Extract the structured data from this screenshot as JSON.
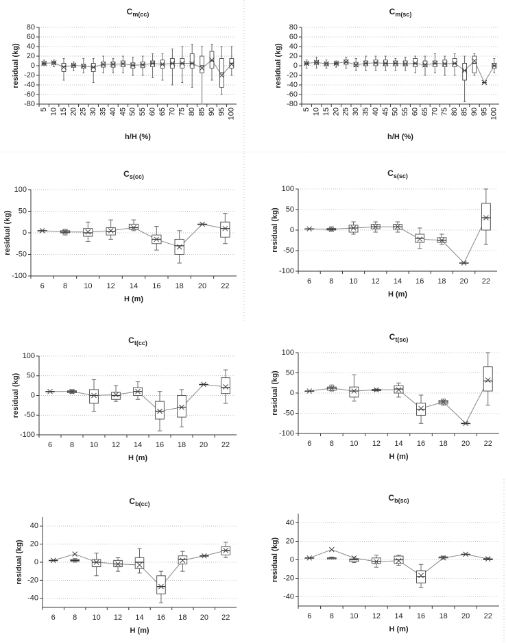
{
  "chart_data": [
    {
      "type": "box",
      "title_main": "C",
      "title_sub": "m(cc)",
      "xlabel": "h/H (%)",
      "ylabel": "residual (kg)",
      "categories": [
        "5",
        "10",
        "15",
        "20",
        "25",
        "30",
        "35",
        "40",
        "45",
        "50",
        "55",
        "60",
        "65",
        "70",
        "75",
        "80",
        "85",
        "90",
        "95",
        "100"
      ],
      "min": [
        0,
        -2,
        -30,
        -10,
        -15,
        -35,
        -15,
        -15,
        -15,
        -20,
        -20,
        -25,
        -30,
        -40,
        -35,
        -45,
        -80,
        -30,
        -60,
        -20
      ],
      "q1": [
        2,
        3,
        -12,
        -3,
        -5,
        -12,
        -3,
        -3,
        -2,
        -5,
        -4,
        -2,
        -5,
        -5,
        -5,
        -5,
        -15,
        -5,
        -45,
        -5
      ],
      "median": [
        5,
        6,
        -2,
        1,
        -1,
        -3,
        2,
        3,
        4,
        1,
        2,
        5,
        3,
        5,
        5,
        5,
        0,
        10,
        -15,
        5
      ],
      "q3": [
        8,
        9,
        5,
        4,
        3,
        5,
        8,
        8,
        10,
        6,
        8,
        10,
        12,
        15,
        15,
        25,
        20,
        30,
        15,
        15
      ],
      "max": [
        12,
        12,
        15,
        8,
        15,
        15,
        20,
        15,
        20,
        18,
        20,
        25,
        25,
        35,
        40,
        45,
        40,
        45,
        40,
        40
      ],
      "mean": [
        5,
        6,
        -3,
        1,
        -1,
        -3,
        3,
        3,
        4,
        1,
        2,
        5,
        3,
        5,
        5,
        5,
        -5,
        12,
        -20,
        3
      ],
      "ylim": [
        -80,
        80
      ],
      "yticks": [
        -80,
        -60,
        -40,
        -20,
        0,
        20,
        40,
        60,
        80
      ],
      "grid": true
    },
    {
      "type": "box",
      "title_main": "C",
      "title_sub": "m(sc)",
      "xlabel": "h/H (%)",
      "ylabel": "residual (kg)",
      "categories": [
        "5",
        "10",
        "15",
        "20",
        "25",
        "30",
        "35",
        "40",
        "45",
        "50",
        "55",
        "60",
        "65",
        "70",
        "75",
        "80",
        "85",
        "90",
        "95",
        "100"
      ],
      "min": [
        -5,
        -5,
        -5,
        -3,
        -5,
        -10,
        -10,
        -10,
        -10,
        -10,
        -10,
        -15,
        -20,
        -15,
        -20,
        -20,
        -75,
        -20,
        -35,
        -15
      ],
      "q1": [
        2,
        3,
        0,
        2,
        3,
        -2,
        0,
        0,
        0,
        0,
        0,
        -2,
        -2,
        -2,
        -2,
        -2,
        -30,
        -15,
        -35,
        -5
      ],
      "median": [
        5,
        6,
        4,
        5,
        7,
        3,
        5,
        6,
        5,
        5,
        4,
        5,
        3,
        5,
        4,
        5,
        -10,
        5,
        -35,
        0
      ],
      "q3": [
        8,
        10,
        7,
        7,
        12,
        7,
        10,
        12,
        12,
        10,
        10,
        15,
        10,
        10,
        12,
        15,
        5,
        20,
        -35,
        5
      ],
      "max": [
        12,
        18,
        12,
        10,
        18,
        15,
        20,
        20,
        20,
        15,
        18,
        20,
        20,
        25,
        20,
        25,
        20,
        25,
        -35,
        15
      ],
      "mean": [
        5,
        7,
        4,
        5,
        8,
        2,
        5,
        6,
        5,
        5,
        4,
        5,
        2,
        5,
        4,
        5,
        -10,
        10,
        -35,
        0
      ],
      "ylim": [
        -80,
        80
      ],
      "yticks": [
        -80,
        -60,
        -40,
        -20,
        0,
        20,
        40,
        60,
        80
      ],
      "grid": true
    },
    {
      "type": "box",
      "title_main": "C",
      "title_sub": "s(cc)",
      "xlabel": "H (m)",
      "ylabel": "residual (kg)",
      "categories": [
        "6",
        "8",
        "10",
        "12",
        "14",
        "16",
        "18",
        "20",
        "22"
      ],
      "min": [
        5,
        -5,
        -20,
        -15,
        5,
        -40,
        -70,
        20,
        -25
      ],
      "q1": [
        5,
        0,
        -8,
        -5,
        8,
        -25,
        -50,
        20,
        -10
      ],
      "median": [
        5,
        2,
        0,
        3,
        12,
        -15,
        -30,
        20,
        10
      ],
      "q3": [
        5,
        5,
        10,
        12,
        20,
        -5,
        -15,
        20,
        25
      ],
      "max": [
        5,
        8,
        25,
        30,
        30,
        15,
        5,
        20,
        45
      ],
      "mean": [
        5,
        2,
        2,
        5,
        12,
        -15,
        -33,
        20,
        10
      ],
      "ylim": [
        -100,
        100
      ],
      "yticks": [
        -100,
        -50,
        0,
        50,
        100
      ],
      "grid": true
    },
    {
      "type": "box",
      "title_main": "C",
      "title_sub": "s(sc)",
      "xlabel": "H (m)",
      "ylabel": "residual (kg)",
      "categories": [
        "6",
        "8",
        "10",
        "12",
        "14",
        "16",
        "18",
        "20",
        "22"
      ],
      "min": [
        3,
        -3,
        -10,
        -5,
        -5,
        -45,
        -35,
        -80,
        -35
      ],
      "q1": [
        3,
        0,
        -5,
        3,
        2,
        -30,
        -30,
        -80,
        0
      ],
      "median": [
        3,
        2,
        5,
        8,
        8,
        -20,
        -25,
        -80,
        30
      ],
      "q3": [
        3,
        4,
        12,
        14,
        14,
        -10,
        -18,
        -80,
        65
      ],
      "max": [
        3,
        8,
        20,
        20,
        20,
        5,
        -10,
        -80,
        100
      ],
      "mean": [
        3,
        2,
        5,
        8,
        8,
        -22,
        -25,
        -80,
        30
      ],
      "ylim": [
        -100,
        100
      ],
      "yticks": [
        -100,
        -50,
        0,
        50,
        100
      ],
      "grid": true
    },
    {
      "type": "box",
      "title_main": "C",
      "title_sub": "t(cc)",
      "xlabel": "H (m)",
      "ylabel": "residual (kg)",
      "categories": [
        "6",
        "8",
        "10",
        "12",
        "14",
        "16",
        "18",
        "20",
        "22"
      ],
      "min": [
        10,
        5,
        -40,
        -15,
        -10,
        -90,
        -80,
        28,
        -20
      ],
      "q1": [
        10,
        7,
        -20,
        -10,
        0,
        -60,
        -55,
        28,
        5
      ],
      "median": [
        10,
        10,
        0,
        0,
        10,
        -40,
        -30,
        28,
        20
      ],
      "q3": [
        10,
        12,
        15,
        8,
        20,
        -15,
        0,
        28,
        45
      ],
      "max": [
        10,
        15,
        40,
        25,
        35,
        10,
        15,
        28,
        65
      ],
      "mean": [
        10,
        10,
        0,
        2,
        10,
        -40,
        -30,
        28,
        22
      ],
      "ylim": [
        -100,
        100
      ],
      "yticks": [
        -100,
        -50,
        0,
        50,
        100
      ],
      "grid": true
    },
    {
      "type": "box",
      "title_main": "C",
      "title_sub": "t(sc)",
      "xlabel": "H (m)",
      "ylabel": "residual (kg)",
      "categories": [
        "6",
        "8",
        "10",
        "12",
        "14",
        "16",
        "18",
        "20",
        "22"
      ],
      "min": [
        5,
        5,
        -20,
        5,
        -10,
        -75,
        -30,
        -75,
        -30
      ],
      "q1": [
        5,
        7,
        -10,
        6,
        0,
        -55,
        -27,
        -75,
        5
      ],
      "median": [
        5,
        12,
        5,
        8,
        10,
        -40,
        -22,
        -75,
        30
      ],
      "q3": [
        5,
        15,
        15,
        9,
        18,
        -25,
        -18,
        -75,
        65
      ],
      "max": [
        5,
        20,
        45,
        10,
        25,
        -5,
        -15,
        -75,
        100
      ],
      "mean": [
        5,
        12,
        5,
        8,
        8,
        -38,
        -22,
        -75,
        32
      ],
      "ylim": [
        -100,
        100
      ],
      "yticks": [
        -100,
        -50,
        0,
        50,
        100
      ],
      "grid": true
    },
    {
      "type": "box",
      "title_main": "C",
      "title_sub": "b(cc)",
      "xlabel": "H (m)",
      "ylabel": "residual (kg)",
      "categories": [
        "6",
        "8",
        "10",
        "12",
        "14",
        "16",
        "18",
        "20",
        "22"
      ],
      "min": [
        2,
        0,
        -15,
        -10,
        -12,
        -45,
        -10,
        7,
        5
      ],
      "q1": [
        2,
        1,
        -5,
        -5,
        -7,
        -35,
        -2,
        7,
        8
      ],
      "median": [
        2,
        2,
        0,
        -2,
        0,
        -27,
        3,
        7,
        13
      ],
      "q3": [
        2,
        3,
        3,
        2,
        5,
        -15,
        7,
        7,
        17
      ],
      "max": [
        2,
        4,
        10,
        5,
        15,
        -10,
        12,
        7,
        22
      ],
      "mean": [
        2,
        9,
        0,
        -2,
        -3,
        -27,
        2,
        7,
        13
      ],
      "ylim": [
        -50,
        50
      ],
      "yticks": [
        -40,
        -20,
        0,
        20,
        40
      ],
      "grid": true
    },
    {
      "type": "box",
      "title_main": "C",
      "title_sub": "b(sc)",
      "xlabel": "H (m)",
      "ylabel": "residual (kg)",
      "categories": [
        "6",
        "8",
        "10",
        "12",
        "14",
        "16",
        "18",
        "20",
        "22"
      ],
      "min": [
        2,
        1,
        -3,
        -8,
        -6,
        -30,
        1,
        6,
        0
      ],
      "q1": [
        2,
        1,
        -2,
        -4,
        -4,
        -25,
        2,
        6,
        0
      ],
      "median": [
        2,
        2,
        0,
        -2,
        0,
        -18,
        3,
        6,
        1
      ],
      "q3": [
        2,
        2,
        1,
        2,
        4,
        -12,
        3,
        6,
        1
      ],
      "max": [
        2,
        3,
        3,
        5,
        5,
        -5,
        4,
        6,
        2
      ],
      "mean": [
        2,
        11,
        2,
        -2,
        -1,
        -17,
        2,
        6,
        1
      ],
      "ylim": [
        -50,
        50
      ],
      "yticks": [
        -40,
        -20,
        0,
        20,
        40
      ],
      "grid": true
    }
  ]
}
